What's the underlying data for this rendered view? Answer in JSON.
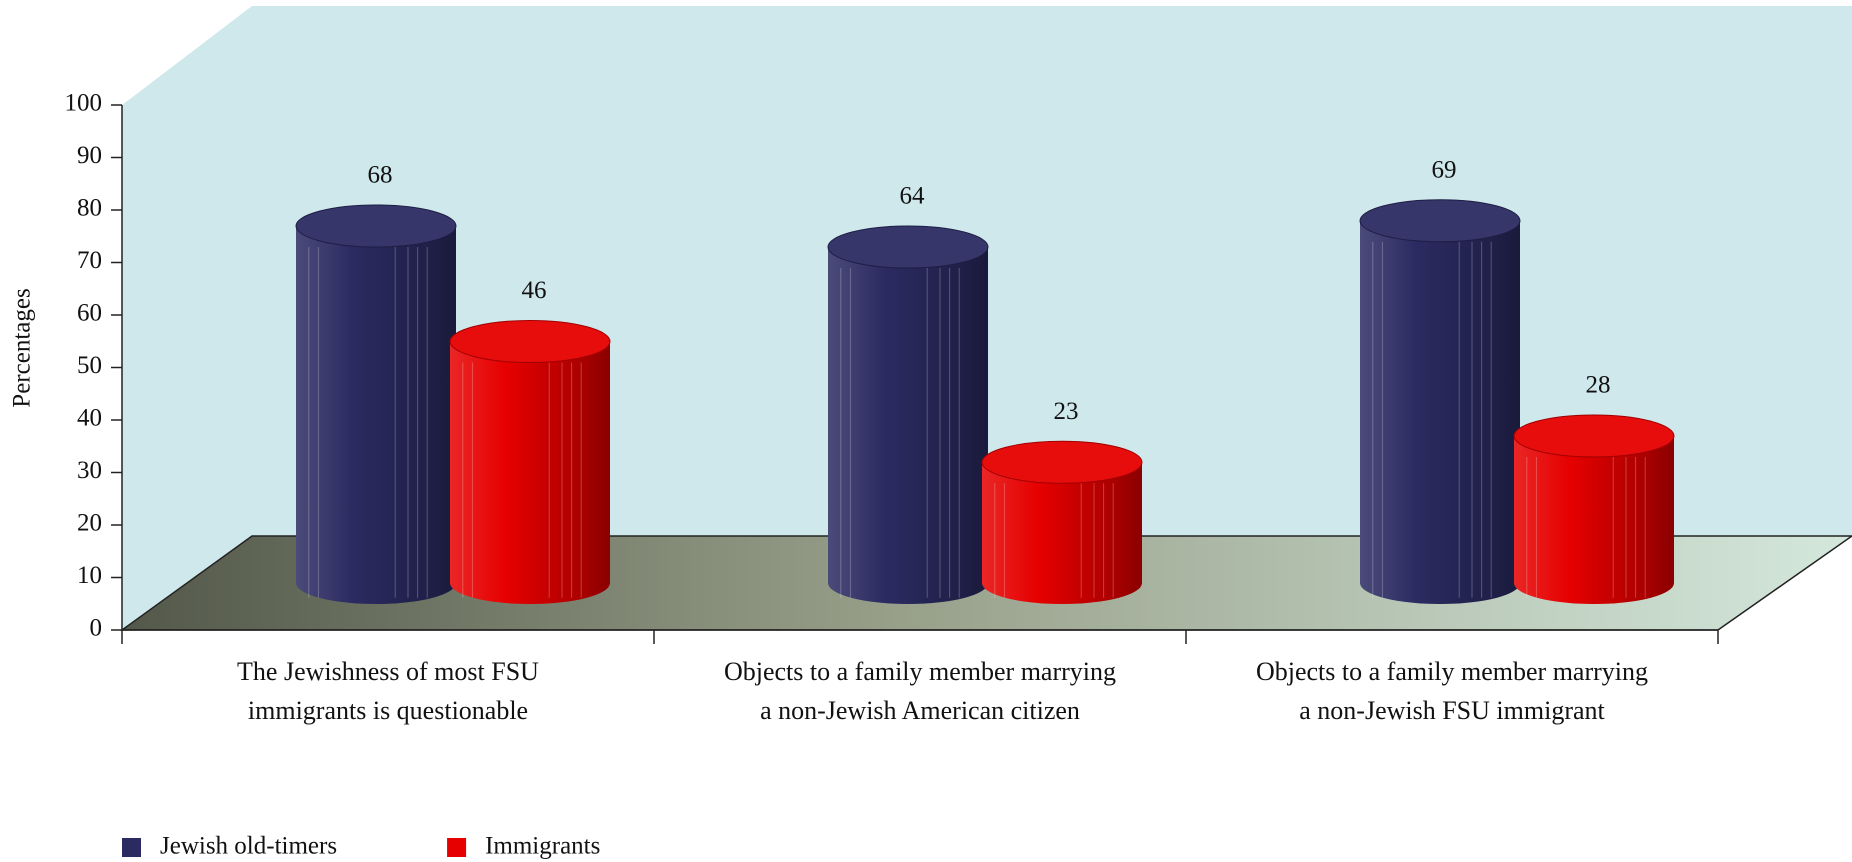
{
  "chart_data": {
    "type": "bar3d",
    "y_label": "Percentages",
    "categories": [
      "The Jewishness of most FSU\nimmigrants is questionable",
      "Objects to a family member marrying\na non-Jewish American citizen",
      "Objects to a family member marrying\na non-Jewish FSU immigrant"
    ],
    "series": [
      {
        "name": "Jewish old-timers",
        "color": "#2b2b62",
        "values": [
          68,
          64,
          69
        ]
      },
      {
        "name": "Immigrants",
        "color": "#e60000",
        "values": [
          46,
          23,
          28
        ]
      }
    ],
    "ylim": [
      0,
      100
    ],
    "yticks": [
      0,
      10,
      20,
      30,
      40,
      50,
      60,
      70,
      80,
      90,
      100
    ],
    "legend": "bottom-left"
  }
}
